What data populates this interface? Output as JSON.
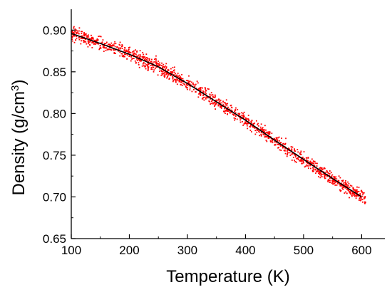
{
  "chart_data": {
    "type": "scatter",
    "xlabel": "Temperature (K)",
    "ylabel": "Density (g/cm³)",
    "ylabel_parts": {
      "main": "Density (g/cm",
      "sup": "3",
      "close": ")"
    },
    "xlim": [
      100,
      640
    ],
    "ylim": [
      0.65,
      0.925
    ],
    "xticks": [
      100,
      200,
      300,
      400,
      500,
      600
    ],
    "xtick_labels": [
      "100",
      "200",
      "300",
      "400",
      "500",
      "600"
    ],
    "yticks": [
      0.65,
      0.7,
      0.75,
      0.8,
      0.85,
      0.9
    ],
    "ytick_labels": [
      "0.65",
      "0.70",
      "0.75",
      "0.80",
      "0.85",
      "0.90"
    ],
    "grid": false,
    "legend": "none",
    "series": [
      {
        "kind": "line",
        "color": "#000000",
        "x": [
          100,
          150,
          200,
          250,
          300,
          350,
          400,
          450,
          500,
          550,
          600
        ],
        "y": [
          0.896,
          0.884,
          0.871,
          0.856,
          0.836,
          0.814,
          0.792,
          0.768,
          0.745,
          0.722,
          0.7
        ]
      },
      {
        "kind": "scatter",
        "color": "#ff0000",
        "x_range": [
          100,
          607
        ],
        "point_count": 1400,
        "spread": 0.008
      }
    ]
  }
}
